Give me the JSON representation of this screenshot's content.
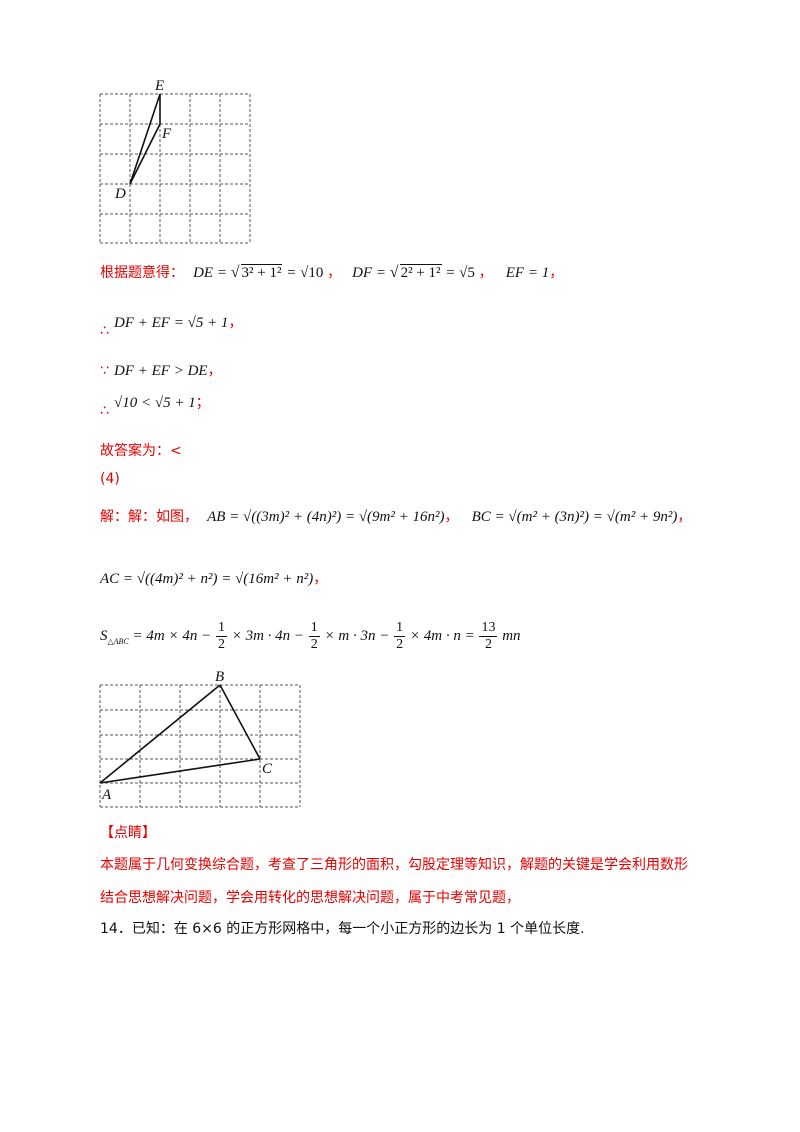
{
  "figure1": {
    "labels": {
      "E": "E",
      "F": "F",
      "D": "D"
    }
  },
  "line1": {
    "prefix": "根据题意得：",
    "de_lhs": "DE",
    "de_rad": "3² + 1²",
    "de_eq": "=",
    "de_val": "√10",
    "sep1": "，",
    "df_lhs": "DF",
    "df_rad": "2² + 1²",
    "df_val": "√5",
    "sep2": "，",
    "ef": "EF = 1",
    "sep3": "，"
  },
  "line2": {
    "therefore": "∴",
    "expr": "DF + EF = √5 + 1",
    "punct": "，"
  },
  "line3": {
    "because": "∵",
    "expr": "DF + EF > DE",
    "punct": "，"
  },
  "line4": {
    "therefore": "∴",
    "expr": "√10 < √5 + 1",
    "punct": "；"
  },
  "answer": "故答案为：<",
  "part4": "(4)",
  "sol": {
    "prefix": "解：解：如图，",
    "ab": "AB = √((3m)² + (4n)²) = √(9m² + 16n²)",
    "sep1": "，",
    "bc": "BC = √(m² + (3n)²) = √(m² + 9n²)",
    "sep2": "，",
    "ac": "AC = √((4m)² + n²) = √(16m² + n²)",
    "sep3": "，",
    "area_lhs": "S",
    "area_sub": "△ABC",
    "area_rhs_a": "= 4m × 4n −",
    "area_rhs_b": "× 3m · 4n −",
    "area_rhs_c": "× m · 3n −",
    "area_rhs_d": "× 4m · n =",
    "area_rhs_e": "mn",
    "half_num": "1",
    "half_den": "2",
    "res_num": "13",
    "res_den": "2"
  },
  "figure2": {
    "labels": {
      "A": "A",
      "B": "B",
      "C": "C"
    }
  },
  "comment": {
    "heading": "【点睛】",
    "line1": "本题属于几何变换综合题，考查了三角形的面积，勾股定理等知识，解题的关键是学会利用数形",
    "line2": "结合思想解决问题，学会用转化的思想解决问题，属于中考常见题，"
  },
  "q14": "14．已知：在 6×6 的正方形网格中，每一个小正方形的边长为 1 个单位长度."
}
